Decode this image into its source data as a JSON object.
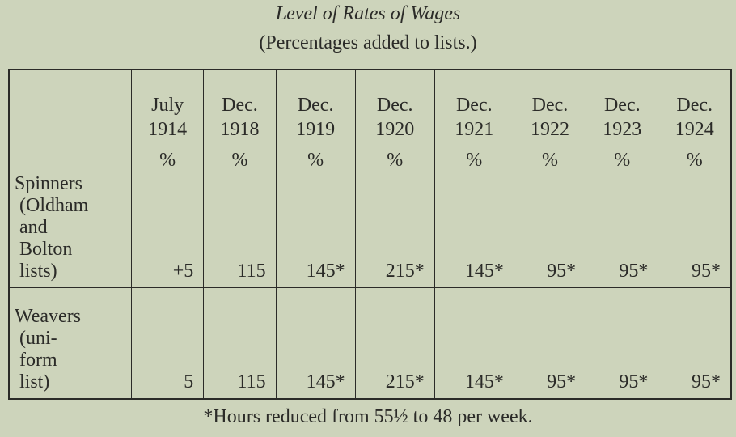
{
  "title": "Level of Rates of Wages",
  "subtitle": "(Percentages added to lists.)",
  "table": {
    "columns": [
      {
        "month": "July",
        "year": "1914"
      },
      {
        "month": "Dec.",
        "year": "1918"
      },
      {
        "month": "Dec.",
        "year": "1919"
      },
      {
        "month": "Dec.",
        "year": "1920"
      },
      {
        "month": "Dec.",
        "year": "1921"
      },
      {
        "month": "Dec.",
        "year": "1922"
      },
      {
        "month": "Dec.",
        "year": "1923"
      },
      {
        "month": "Dec.",
        "year": "1924"
      }
    ],
    "unit": "%",
    "rows": [
      {
        "label": [
          "Spinners",
          "(Oldham",
          "and",
          "Bolton",
          "lists)"
        ],
        "values": [
          "+5",
          "115",
          "145*",
          "215*",
          "145*",
          "95*",
          "95*",
          "95*"
        ]
      },
      {
        "label": [
          "Weavers",
          "(uni-",
          "form",
          "list)"
        ],
        "values": [
          "5",
          "115",
          "145*",
          "215*",
          "145*",
          "95*",
          "95*",
          "95*"
        ]
      }
    ]
  },
  "footnote": "*Hours reduced from 55½ to 48 per week."
}
